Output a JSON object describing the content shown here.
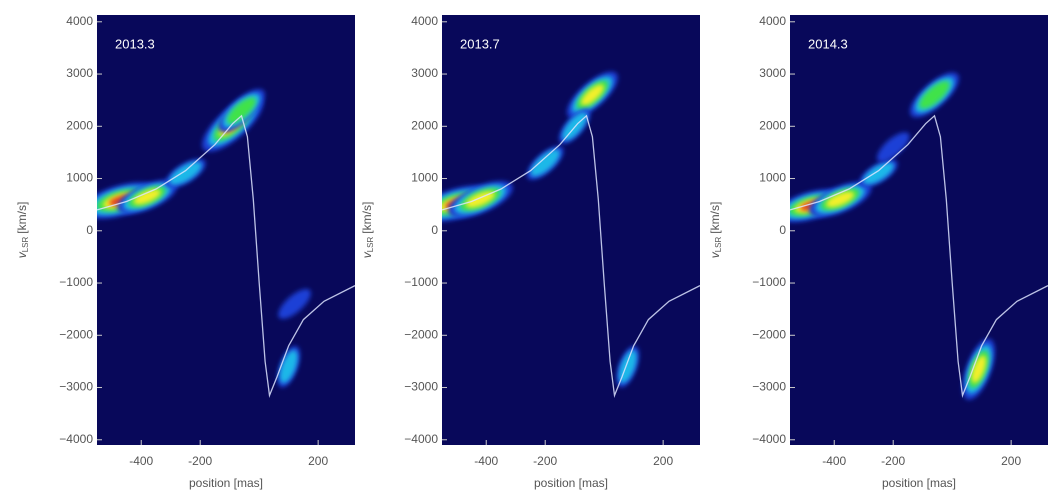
{
  "chart_data": [
    {
      "type": "heatmap",
      "annotation": "2013.3",
      "background": "#08085a",
      "xlabel": "position [mas]",
      "ylabel": {
        "symbol": "v",
        "subscript": "LSR",
        "unit": "[km/s]"
      },
      "xlim": [
        -550,
        325
      ],
      "ylim": [
        -4100,
        4130
      ],
      "xticks": [
        -400,
        -200,
        200
      ],
      "yticks": [
        {
          "value": -4000,
          "label": "−4000"
        },
        {
          "value": -3000,
          "label": "−3000"
        },
        {
          "value": -2000,
          "label": "−2000"
        },
        {
          "value": -1000,
          "label": "−1000"
        },
        0,
        1000,
        2000,
        3000,
        4000
      ],
      "curve": {
        "color": "#dde4ff",
        "x": [
          -550,
          -450,
          -350,
          -250,
          -150,
          -90,
          -60,
          -40,
          -20,
          0,
          20,
          35,
          60,
          100,
          150,
          220,
          325
        ],
        "y": [
          400,
          560,
          800,
          1150,
          1650,
          2050,
          2200,
          1800,
          600,
          -1000,
          -2500,
          -3150,
          -2800,
          -2200,
          -1700,
          -1350,
          -1050
        ]
      },
      "peaks": {
        "x": [
          -470,
          -380,
          -90,
          -60,
          -250,
          100,
          120
        ],
        "y": [
          580,
          650,
          2050,
          2300,
          1100,
          -2600,
          -1400
        ],
        "intensity": [
          1.0,
          0.7,
          0.95,
          0.6,
          0.35,
          0.3,
          0.25
        ]
      }
    },
    {
      "type": "heatmap",
      "annotation": "2013.7",
      "background": "#08085a",
      "xlabel": "position [mas]",
      "ylabel": {
        "symbol": "v",
        "subscript": "LSR",
        "unit": "[km/s]"
      },
      "xlim": [
        -550,
        325
      ],
      "ylim": [
        -4100,
        4130
      ],
      "xticks": [
        -400,
        -200,
        200
      ],
      "yticks": [
        {
          "value": -4000,
          "label": "−4000"
        },
        {
          "value": -3000,
          "label": "−3000"
        },
        {
          "value": -2000,
          "label": "−2000"
        },
        {
          "value": -1000,
          "label": "−1000"
        },
        0,
        1000,
        2000,
        3000,
        4000
      ],
      "curve": {
        "color": "#dde4ff",
        "x": [
          -550,
          -450,
          -350,
          -250,
          -150,
          -90,
          -60,
          -40,
          -20,
          0,
          20,
          35,
          60,
          100,
          150,
          220,
          325
        ],
        "y": [
          400,
          560,
          800,
          1150,
          1650,
          2050,
          2200,
          1800,
          600,
          -1000,
          -2500,
          -3150,
          -2800,
          -2200,
          -1700,
          -1350,
          -1050
        ]
      },
      "peaks": {
        "x": [
          -500,
          -420,
          -40,
          -200,
          80,
          -100
        ],
        "y": [
          520,
          600,
          2600,
          1300,
          -2600,
          2000
        ],
        "intensity": [
          1.0,
          0.8,
          0.7,
          0.35,
          0.3,
          0.3
        ]
      }
    },
    {
      "type": "heatmap",
      "annotation": "2014.3",
      "background": "#08085a",
      "xlabel": "position [mas]",
      "ylabel": {
        "symbol": "v",
        "subscript": "LSR",
        "unit": "[km/s]"
      },
      "xlim": [
        -550,
        325
      ],
      "ylim": [
        -4100,
        4130
      ],
      "xticks": [
        -400,
        -200,
        200
      ],
      "yticks": [
        {
          "value": -4000,
          "label": "−4000"
        },
        {
          "value": -3000,
          "label": "−3000"
        },
        {
          "value": -2000,
          "label": "−2000"
        },
        {
          "value": -1000,
          "label": "−1000"
        },
        0,
        1000,
        2000,
        3000,
        4000
      ],
      "curve": {
        "color": "#dde4ff",
        "x": [
          -550,
          -450,
          -350,
          -250,
          -150,
          -90,
          -60,
          -40,
          -20,
          0,
          20,
          35,
          60,
          100,
          150,
          220,
          325
        ],
        "y": [
          400,
          560,
          800,
          1150,
          1650,
          2050,
          2200,
          1800,
          600,
          -1000,
          -2500,
          -3150,
          -2800,
          -2200,
          -1700,
          -1350,
          -1050
        ]
      },
      "peaks": {
        "x": [
          -480,
          -380,
          -60,
          -250,
          90,
          -200
        ],
        "y": [
          480,
          600,
          2600,
          1100,
          -2650,
          1600
        ],
        "intensity": [
          0.85,
          0.75,
          0.65,
          0.3,
          0.7,
          0.25
        ]
      }
    }
  ]
}
